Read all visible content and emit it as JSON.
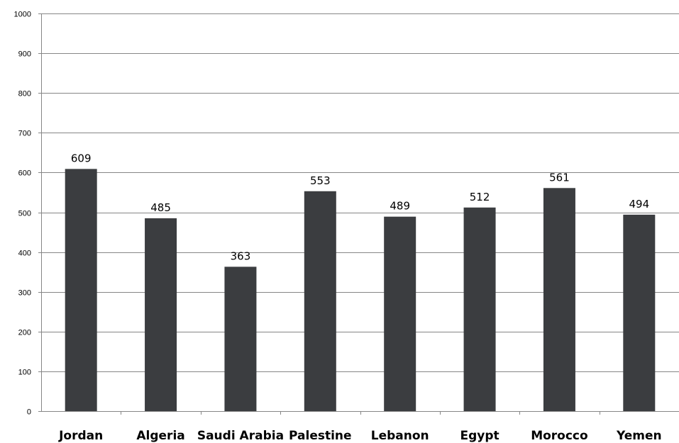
{
  "chart_data": {
    "type": "bar",
    "title": "",
    "xlabel": "",
    "ylabel": "",
    "categories": [
      "Jordan",
      "Algeria",
      "Saudi Arabia",
      "Palestine",
      "Lebanon",
      "Egypt",
      "Morocco",
      "Yemen"
    ],
    "values": [
      609,
      485,
      363,
      553,
      489,
      512,
      561,
      494
    ],
    "ylim": [
      0,
      1000
    ],
    "yticks": [
      0,
      100,
      200,
      300,
      400,
      500,
      600,
      700,
      800,
      900,
      1000
    ],
    "grid": true,
    "legend": "none",
    "data_labels": true,
    "bar_color": "#3b3d40"
  }
}
